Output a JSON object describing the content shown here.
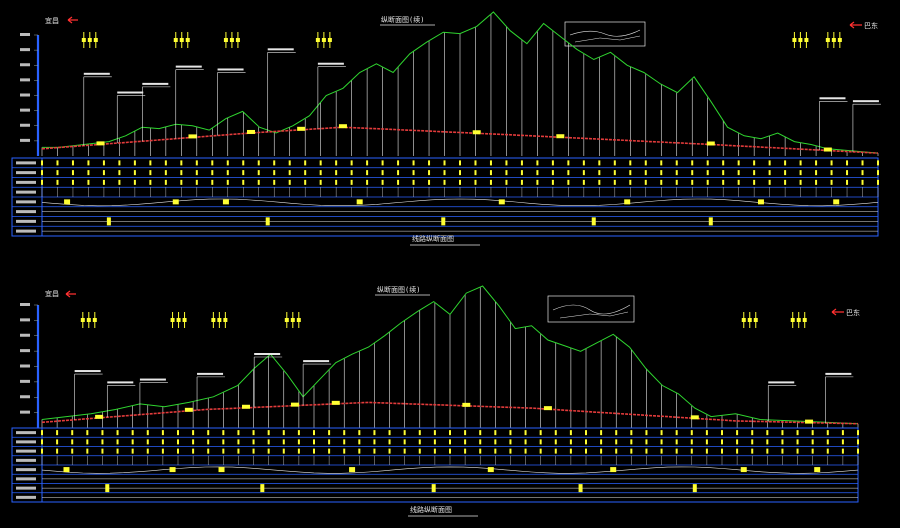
{
  "colors": {
    "background": "#000000",
    "terrain": "#2fd52f",
    "grade_line": "#e23b3b",
    "station_lines": "#ffffff",
    "annotation": "#ffff33",
    "table_frame": "#2a62ff",
    "arrow": "#ff3030",
    "text_white": "#e6e6e6"
  },
  "views": [
    {
      "id": "upper",
      "labels": {
        "left_direction": "宜昌",
        "right_direction": "巴东",
        "title": "纵断面图(续)",
        "footer_title": "线路纵断面图"
      },
      "terrain_profile": [
        [
          0,
          0.06
        ],
        [
          0.02,
          0.06
        ],
        [
          0.05,
          0.08
        ],
        [
          0.08,
          0.1
        ],
        [
          0.1,
          0.14
        ],
        [
          0.12,
          0.2
        ],
        [
          0.14,
          0.19
        ],
        [
          0.16,
          0.22
        ],
        [
          0.18,
          0.21
        ],
        [
          0.2,
          0.18
        ],
        [
          0.22,
          0.26
        ],
        [
          0.24,
          0.31
        ],
        [
          0.26,
          0.2
        ],
        [
          0.28,
          0.16
        ],
        [
          0.3,
          0.21
        ],
        [
          0.32,
          0.28
        ],
        [
          0.34,
          0.42
        ],
        [
          0.36,
          0.47
        ],
        [
          0.38,
          0.58
        ],
        [
          0.4,
          0.64
        ],
        [
          0.42,
          0.58
        ],
        [
          0.44,
          0.71
        ],
        [
          0.46,
          0.79
        ],
        [
          0.48,
          0.86
        ],
        [
          0.5,
          0.85
        ],
        [
          0.52,
          0.9
        ],
        [
          0.54,
          1.0
        ],
        [
          0.56,
          0.87
        ],
        [
          0.58,
          0.78
        ],
        [
          0.6,
          0.92
        ],
        [
          0.62,
          0.83
        ],
        [
          0.64,
          0.74
        ],
        [
          0.66,
          0.67
        ],
        [
          0.68,
          0.72
        ],
        [
          0.7,
          0.63
        ],
        [
          0.72,
          0.58
        ],
        [
          0.74,
          0.5
        ],
        [
          0.76,
          0.44
        ],
        [
          0.78,
          0.55
        ],
        [
          0.8,
          0.38
        ],
        [
          0.82,
          0.2
        ],
        [
          0.84,
          0.14
        ],
        [
          0.86,
          0.12
        ],
        [
          0.88,
          0.16
        ],
        [
          0.9,
          0.1
        ],
        [
          0.92,
          0.08
        ],
        [
          0.94,
          0.05
        ],
        [
          1.0,
          0.02
        ]
      ],
      "grade_profile": [
        [
          0,
          0.05
        ],
        [
          0.25,
          0.16
        ],
        [
          0.36,
          0.2
        ],
        [
          0.55,
          0.15
        ],
        [
          0.8,
          0.08
        ],
        [
          1.0,
          0.02
        ]
      ]
    },
    {
      "id": "lower",
      "labels": {
        "left_direction": "宜昌",
        "right_direction": "巴东",
        "title": "纵断面图(续)",
        "footer_title": "线路纵断面图"
      },
      "terrain_profile": [
        [
          0,
          0.06
        ],
        [
          0.03,
          0.08
        ],
        [
          0.06,
          0.1
        ],
        [
          0.09,
          0.13
        ],
        [
          0.12,
          0.17
        ],
        [
          0.15,
          0.15
        ],
        [
          0.18,
          0.18
        ],
        [
          0.21,
          0.22
        ],
        [
          0.24,
          0.3
        ],
        [
          0.26,
          0.42
        ],
        [
          0.28,
          0.52
        ],
        [
          0.3,
          0.38
        ],
        [
          0.32,
          0.22
        ],
        [
          0.34,
          0.34
        ],
        [
          0.36,
          0.46
        ],
        [
          0.38,
          0.52
        ],
        [
          0.4,
          0.57
        ],
        [
          0.42,
          0.65
        ],
        [
          0.44,
          0.74
        ],
        [
          0.46,
          0.82
        ],
        [
          0.48,
          0.89
        ],
        [
          0.5,
          0.8
        ],
        [
          0.52,
          0.95
        ],
        [
          0.54,
          1.0
        ],
        [
          0.56,
          0.86
        ],
        [
          0.58,
          0.7
        ],
        [
          0.6,
          0.72
        ],
        [
          0.62,
          0.62
        ],
        [
          0.64,
          0.58
        ],
        [
          0.66,
          0.54
        ],
        [
          0.68,
          0.6
        ],
        [
          0.7,
          0.66
        ],
        [
          0.72,
          0.57
        ],
        [
          0.74,
          0.42
        ],
        [
          0.76,
          0.3
        ],
        [
          0.78,
          0.24
        ],
        [
          0.8,
          0.14
        ],
        [
          0.82,
          0.08
        ],
        [
          0.85,
          0.1
        ],
        [
          0.88,
          0.06
        ],
        [
          0.92,
          0.05
        ],
        [
          0.96,
          0.04
        ],
        [
          1.0,
          0.03
        ]
      ],
      "grade_profile": [
        [
          0,
          0.04
        ],
        [
          0.2,
          0.13
        ],
        [
          0.4,
          0.18
        ],
        [
          0.6,
          0.14
        ],
        [
          0.85,
          0.05
        ],
        [
          1.0,
          0.03
        ]
      ]
    }
  ],
  "table_rows": 8,
  "stations": 54
}
